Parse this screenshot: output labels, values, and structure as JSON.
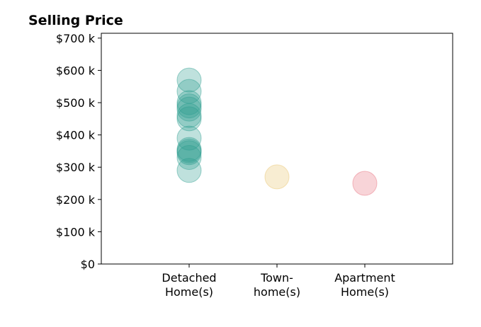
{
  "chart_data": {
    "type": "scatter",
    "title": "Selling Price",
    "xlabel": "",
    "ylabel": "",
    "categories": [
      "Detached\nHome(s)",
      "Town-\nhome(s)",
      "Apartment\nHome(s)"
    ],
    "ylim": [
      0,
      715000
    ],
    "yticks": [
      0,
      100000,
      200000,
      300000,
      400000,
      500000,
      600000,
      700000
    ],
    "ytick_labels": [
      "$0",
      "$100 k",
      "$200 k",
      "$300 k",
      "$400 k",
      "$500 k",
      "$600 k",
      "$700 k"
    ],
    "grid": false,
    "series": [
      {
        "category": "Detached\nHome(s)",
        "color": "#2a9d8f",
        "values": [
          570000,
          535000,
          500000,
          490000,
          480000,
          460000,
          450000,
          390000,
          355000,
          350000,
          345000,
          330000,
          290000
        ]
      },
      {
        "category": "Town-\nhome(s)",
        "color": "#e9c46a",
        "values": [
          270000
        ]
      },
      {
        "category": "Apartment\nHome(s)",
        "color": "#e76f7d",
        "values": [
          250000
        ]
      }
    ]
  }
}
